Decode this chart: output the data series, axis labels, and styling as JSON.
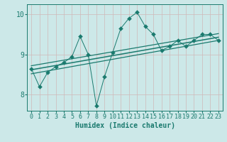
{
  "xlabel": "Humidex (Indice chaleur)",
  "bg_color": "#cce8e8",
  "line_color": "#1a7a6e",
  "grid_color": "#b8d8d8",
  "xlim": [
    -0.5,
    23.5
  ],
  "ylim": [
    7.6,
    10.25
  ],
  "yticks": [
    8,
    9,
    10
  ],
  "xticks": [
    0,
    1,
    2,
    3,
    4,
    5,
    6,
    7,
    8,
    9,
    10,
    11,
    12,
    13,
    14,
    15,
    16,
    17,
    18,
    19,
    20,
    21,
    22,
    23
  ],
  "scatter_x": [
    0,
    1,
    2,
    3,
    4,
    5,
    6,
    7,
    8,
    9,
    10,
    11,
    12,
    13,
    14,
    15,
    16,
    17,
    18,
    19,
    20,
    21,
    22,
    23
  ],
  "scatter_y": [
    8.65,
    8.2,
    8.55,
    8.7,
    8.8,
    8.95,
    9.45,
    9.0,
    7.72,
    8.45,
    9.05,
    9.65,
    9.9,
    10.05,
    9.7,
    9.5,
    9.1,
    9.2,
    9.35,
    9.2,
    9.35,
    9.5,
    9.5,
    9.35
  ],
  "reg_upper": [
    0,
    23,
    8.72,
    9.52
  ],
  "reg_lower": [
    0,
    23,
    8.52,
    9.35
  ],
  "reg_mid": [
    0,
    23,
    8.62,
    9.43
  ],
  "marker_size": 3,
  "tick_fontsize": 6,
  "label_fontsize": 7
}
